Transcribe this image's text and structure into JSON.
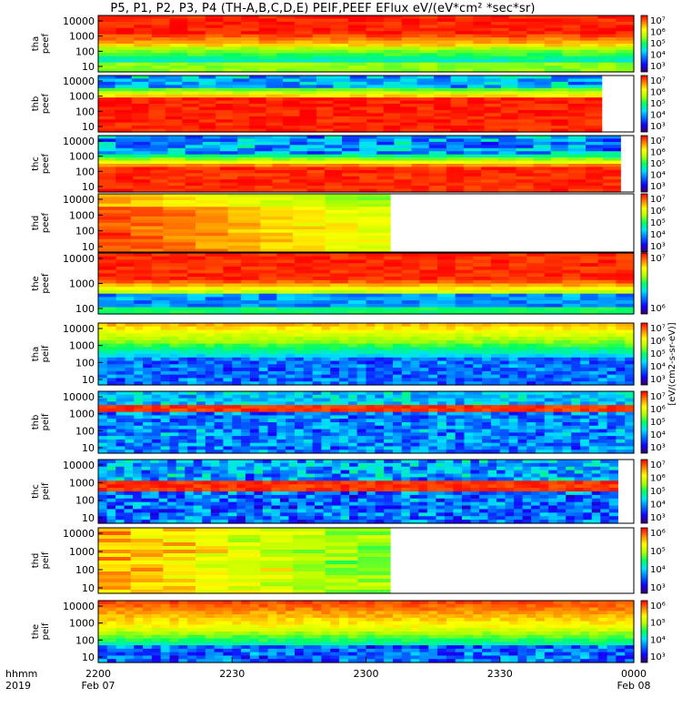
{
  "title": "P5, P1, P2, P3, P4 (TH-A,B,C,D,E) PEIF,PEEF EFlux eV/(eV*cm² *sec*sr)",
  "colorbar_label": "[eV/(cm2-s-sr-eV)]",
  "chart_data": {
    "type": "heatmap",
    "title": "P5, P1, P2, P3, P4 (TH-A,B,C,D,E) PEIF,PEEF EFlux eV/(eV*cm² *sec*sr)",
    "x_ticks": [
      "2200",
      "2230",
      "2300",
      "2330",
      "0000"
    ],
    "x_tick_dates": [
      "Feb 07",
      "",
      "",
      "",
      "Feb 08"
    ],
    "x_header": [
      "hhmm",
      "2019"
    ],
    "y_scale": "log",
    "panels": [
      {
        "label": [
          "tha",
          "peef"
        ],
        "y_ticks": [
          "10000",
          "1000",
          "100",
          "10"
        ],
        "cb_ticks": [
          "10⁷",
          "10⁶",
          "10⁵",
          "10⁴",
          "10³"
        ],
        "data_end": 1.0,
        "profile": "tha_e"
      },
      {
        "label": [
          "thb",
          "peef"
        ],
        "y_ticks": [
          "10000",
          "1000",
          "100",
          "10"
        ],
        "cb_ticks": [
          "10⁷",
          "10⁶",
          "10⁵",
          "10⁴",
          "10³"
        ],
        "data_end": 0.94,
        "profile": "thb_e"
      },
      {
        "label": [
          "thc",
          "peef"
        ],
        "y_ticks": [
          "10000",
          "1000",
          "100",
          "10"
        ],
        "cb_ticks": [
          "10⁷",
          "10⁶",
          "10⁵",
          "10⁴",
          "10³"
        ],
        "data_end": 0.975,
        "profile": "thc_e"
      },
      {
        "label": [
          "thd",
          "peef"
        ],
        "y_ticks": [
          "10000",
          "1000",
          "100",
          "10"
        ],
        "cb_ticks": [
          "10⁷",
          "10⁶",
          "10⁵",
          "10⁴",
          "10³"
        ],
        "data_end": 0.545,
        "profile": "thd_e"
      },
      {
        "label": [
          "the",
          "peef"
        ],
        "y_ticks": [
          "10000",
          "1000",
          "100"
        ],
        "cb_ticks": [
          "10⁷",
          "10⁶"
        ],
        "data_end": 1.0,
        "profile": "the_e"
      },
      {
        "label": [
          "tha",
          "peif"
        ],
        "y_ticks": [
          "10000",
          "1000",
          "100",
          "10"
        ],
        "cb_ticks": [
          "10⁷",
          "10⁶",
          "10⁵",
          "10⁴",
          "10³"
        ],
        "data_end": 1.0,
        "profile": "tha_i"
      },
      {
        "label": [
          "thb",
          "peif"
        ],
        "y_ticks": [
          "10000",
          "1000",
          "100",
          "10"
        ],
        "cb_ticks": [
          "10⁷",
          "10⁶",
          "10⁵",
          "10⁴",
          "10³"
        ],
        "data_end": 1.0,
        "profile": "thb_i"
      },
      {
        "label": [
          "thc",
          "peif"
        ],
        "y_ticks": [
          "10000",
          "1000",
          "100",
          "10"
        ],
        "cb_ticks": [
          "10⁷",
          "10⁶",
          "10⁵",
          "10⁴",
          "10³"
        ],
        "data_end": 0.97,
        "profile": "thc_i"
      },
      {
        "label": [
          "thd",
          "peif"
        ],
        "y_ticks": [
          "10000",
          "1000",
          "100",
          "10"
        ],
        "cb_ticks": [
          "10⁶",
          "10⁵",
          "10⁴",
          "10³"
        ],
        "data_end": 0.545,
        "profile": "thd_i"
      },
      {
        "label": [
          "the",
          "peif"
        ],
        "y_ticks": [
          "10000",
          "1000",
          "100",
          "10"
        ],
        "cb_ticks": [
          "10⁶",
          "10⁵",
          "10⁴",
          "10³"
        ],
        "data_end": 1.0,
        "profile": "the_i"
      }
    ]
  },
  "colors": {
    "spectral": [
      "#3a0060",
      "#1400ff",
      "#0070ff",
      "#00e0ff",
      "#00ff60",
      "#b0ff00",
      "#ffff00",
      "#ff8000",
      "#ff0000"
    ]
  }
}
